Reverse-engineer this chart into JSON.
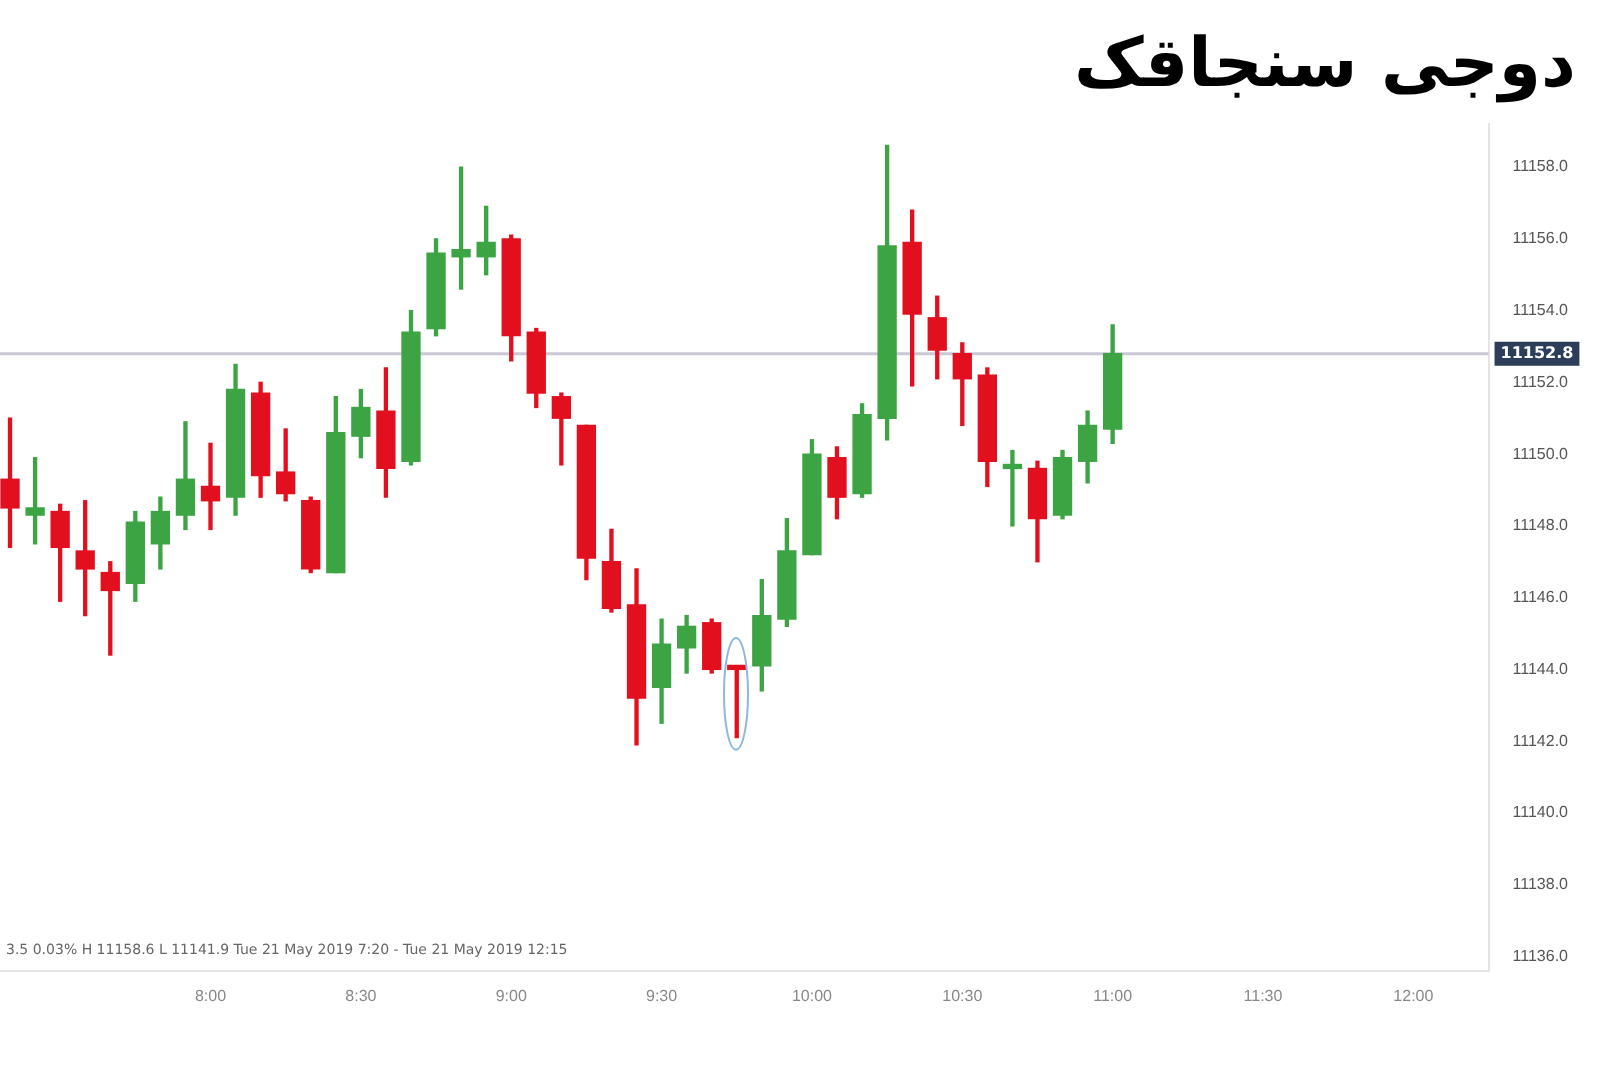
{
  "chart_data": {
    "type": "candlestick",
    "title": "دوجی سنجاقک",
    "x": [
      7.3333,
      7.4167,
      7.5,
      7.5833,
      7.6667,
      7.75,
      7.8333,
      7.9167,
      8,
      8.0833,
      8.1667,
      8.25,
      8.3333,
      8.4167,
      8.5,
      8.5833,
      8.6667,
      8.75,
      8.8333,
      8.9167,
      9,
      9.0833,
      9.1667,
      9.25,
      9.3333,
      9.4167,
      9.5,
      9.5833,
      9.6667,
      9.75,
      9.8333,
      9.9167,
      10,
      10.0833,
      10.1667,
      10.25,
      10.3333,
      10.4167,
      10.5,
      10.5833,
      10.6667,
      10.75,
      10.8333,
      10.9167,
      11
    ],
    "ohlc": [
      [
        11149.3,
        11151.0,
        11147.4,
        11148.5
      ],
      [
        11148.3,
        11149.9,
        11147.5,
        11148.5
      ],
      [
        11148.4,
        11148.6,
        11145.9,
        11147.4
      ],
      [
        11147.3,
        11148.7,
        11145.5,
        11146.8
      ],
      [
        11146.7,
        11147.0,
        11144.4,
        11146.2
      ],
      [
        11146.4,
        11148.4,
        11145.9,
        11148.1
      ],
      [
        11147.5,
        11148.8,
        11146.8,
        11148.4
      ],
      [
        11148.3,
        11150.9,
        11147.9,
        11149.3
      ],
      [
        11149.1,
        11150.3,
        11147.9,
        11148.7
      ],
      [
        11148.8,
        11152.5,
        11148.3,
        11151.8
      ],
      [
        11151.7,
        11152.0,
        11148.8,
        11149.4
      ],
      [
        11149.5,
        11150.7,
        11148.7,
        11148.9
      ],
      [
        11148.7,
        11148.8,
        11146.7,
        11146.8
      ],
      [
        11146.7,
        11151.6,
        11146.7,
        11150.6
      ],
      [
        11150.5,
        11151.8,
        11149.9,
        11151.3
      ],
      [
        11151.2,
        11152.4,
        11148.8,
        11149.6
      ],
      [
        11149.8,
        11154.0,
        11149.7,
        11153.4
      ],
      [
        11153.5,
        11156.0,
        11153.3,
        11155.6
      ],
      [
        11155.5,
        11158.0,
        11154.6,
        11155.7
      ],
      [
        11155.5,
        11156.9,
        11155.0,
        11155.9
      ],
      [
        11156.0,
        11156.1,
        11152.6,
        11153.3
      ],
      [
        11153.4,
        11153.5,
        11151.3,
        11151.7
      ],
      [
        11151.6,
        11151.7,
        11149.7,
        11151.0
      ],
      [
        11150.8,
        11150.8,
        11146.5,
        11147.1
      ],
      [
        11147.0,
        11147.9,
        11145.6,
        11145.7
      ],
      [
        11145.8,
        11146.8,
        11141.9,
        11143.2
      ],
      [
        11143.5,
        11145.4,
        11142.5,
        11144.7
      ],
      [
        11144.6,
        11145.5,
        11143.9,
        11145.2
      ],
      [
        11145.3,
        11145.4,
        11143.9,
        11144.0
      ],
      [
        11144.1,
        11144.1,
        11142.1,
        11144.0
      ],
      [
        11144.1,
        11146.5,
        11143.4,
        11145.5
      ],
      [
        11145.4,
        11148.2,
        11145.2,
        11147.3
      ],
      [
        11147.2,
        11150.4,
        11147.2,
        11150.0
      ],
      [
        11149.9,
        11150.2,
        11148.2,
        11148.8
      ],
      [
        11148.9,
        11151.4,
        11148.8,
        11151.1
      ],
      [
        11151.0,
        11158.6,
        11150.4,
        11155.8
      ],
      [
        11155.9,
        11156.8,
        11151.9,
        11153.9
      ],
      [
        11153.8,
        11154.4,
        11152.1,
        11152.9
      ],
      [
        11152.8,
        11153.1,
        11150.8,
        11152.1
      ],
      [
        11152.2,
        11152.4,
        11149.1,
        11149.8
      ],
      [
        11149.6,
        11150.1,
        11148.0,
        11149.7
      ],
      [
        11149.6,
        11149.8,
        11147.0,
        11148.2
      ],
      [
        11148.3,
        11150.1,
        11148.2,
        11149.9
      ],
      [
        11149.8,
        11151.2,
        11149.2,
        11150.8
      ],
      [
        11150.7,
        11153.6,
        11150.3,
        11152.8
      ]
    ],
    "colors": [
      "#e2101f",
      "#3da443",
      "#e2101f",
      "#e2101f",
      "#e2101f",
      "#3da443",
      "#3da443",
      "#3da443",
      "#e2101f",
      "#3da443",
      "#e2101f",
      "#e2101f",
      "#e2101f",
      "#3da443",
      "#3da443",
      "#e2101f",
      "#3da443",
      "#3da443",
      "#3da443",
      "#3da443",
      "#e2101f",
      "#e2101f",
      "#e2101f",
      "#e2101f",
      "#e2101f",
      "#e2101f",
      "#3da443",
      "#3da443",
      "#e2101f",
      "#e2101f",
      "#3da443",
      "#3da443",
      "#3da443",
      "#e2101f",
      "#3da443",
      "#3da443",
      "#e2101f",
      "#e2101f",
      "#e2101f",
      "#e2101f",
      "#3da443",
      "#e2101f",
      "#3da443",
      "#3da443",
      "#3da443"
    ],
    "xlim": [
      7.3,
      12.25
    ],
    "xticks": [
      {
        "value": 8,
        "label": "8:00"
      },
      {
        "value": 8.5,
        "label": "8:30"
      },
      {
        "value": 9,
        "label": "9:00"
      },
      {
        "value": 9.5,
        "label": "9:30"
      },
      {
        "value": 10,
        "label": "10:00"
      },
      {
        "value": 10.5,
        "label": "10:30"
      },
      {
        "value": 11,
        "label": "11:00"
      },
      {
        "value": 11.5,
        "label": "11:30"
      },
      {
        "value": 12,
        "label": "12:00"
      }
    ],
    "ylim": [
      11135.6,
      11159.2
    ],
    "yticks": [
      {
        "value": 11136,
        "label": "11136.0"
      },
      {
        "value": 11138,
        "label": "11138.0"
      },
      {
        "value": 11140,
        "label": "11140.0"
      },
      {
        "value": 11142,
        "label": "11142.0"
      },
      {
        "value": 11144,
        "label": "11144.0"
      },
      {
        "value": 11146,
        "label": "11146.0"
      },
      {
        "value": 11148,
        "label": "11148.0"
      },
      {
        "value": 11150,
        "label": "11150.0"
      },
      {
        "value": 11152,
        "label": "11152.0"
      },
      {
        "value": 11154,
        "label": "11154.0"
      },
      {
        "value": 11156,
        "label": "11156.0"
      },
      {
        "value": 11158,
        "label": "11158.0"
      }
    ],
    "ref_lines": [
      {
        "axis": "y",
        "value": 11152.8,
        "label": "11152.8",
        "color": "#c9c9d6"
      }
    ],
    "annotations": [
      "3.5   0.03%   H 11158.6   L 11141.9   Tue 21 May 2019 7:20 - Tue 21 May 2019 12:15"
    ]
  }
}
